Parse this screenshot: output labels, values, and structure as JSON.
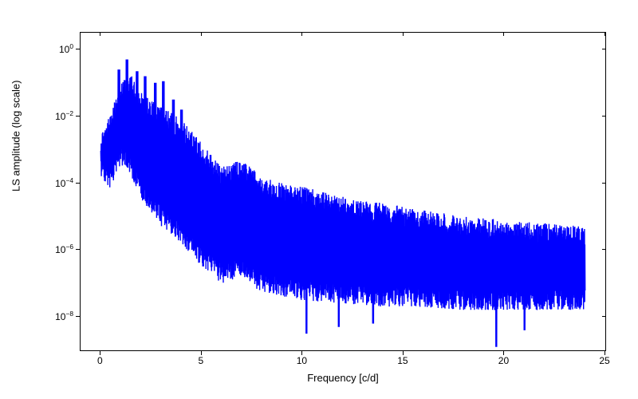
{
  "chart": {
    "type": "line",
    "xlabel": "Frequency [c/d]",
    "ylabel": "LS amplitude (log scale)",
    "line_color": "#0000ff",
    "line_width": 1.4,
    "background_color": "#ffffff",
    "border_color": "#000000",
    "label_fontsize": 13,
    "tick_fontsize": 12,
    "xlim": [
      -1,
      25
    ],
    "ylim_exp": [
      -9,
      0.5
    ],
    "yscale": "log",
    "xticks": [
      0,
      5,
      10,
      15,
      20,
      25
    ],
    "ytick_exponents": [
      -8,
      -6,
      -4,
      -2,
      0
    ],
    "peaks_x": [
      0.9,
      1.3,
      1.8,
      2.2,
      2.7,
      3.1,
      3.6,
      4.0
    ],
    "peaks_y_exp": [
      -0.6,
      -0.3,
      -0.65,
      -0.8,
      -1.0,
      -0.95,
      -1.5,
      -1.8
    ],
    "envelope_upper": [
      [
        0,
        -2.5
      ],
      [
        0.5,
        -1.9
      ],
      [
        1,
        -1.0
      ],
      [
        1.5,
        -0.7
      ],
      [
        2,
        -1.3
      ],
      [
        3,
        -1.7
      ],
      [
        4,
        -2.1
      ],
      [
        5,
        -2.8
      ],
      [
        6,
        -3.5
      ],
      [
        7,
        -3.3
      ],
      [
        8,
        -3.8
      ],
      [
        9,
        -4.0
      ],
      [
        10,
        -4.1
      ],
      [
        12,
        -4.4
      ],
      [
        14,
        -4.6
      ],
      [
        16,
        -4.8
      ],
      [
        18,
        -5.0
      ],
      [
        20,
        -5.1
      ],
      [
        22,
        -5.2
      ],
      [
        24,
        -5.3
      ]
    ],
    "envelope_lower": [
      [
        0,
        -3.8
      ],
      [
        0.5,
        -4.2
      ],
      [
        1,
        -3.5
      ],
      [
        1.5,
        -3.8
      ],
      [
        2,
        -4.5
      ],
      [
        3,
        -5.3
      ],
      [
        4,
        -5.8
      ],
      [
        5,
        -6.5
      ],
      [
        6,
        -7.0
      ],
      [
        7,
        -6.8
      ],
      [
        8,
        -7.3
      ],
      [
        9,
        -7.4
      ],
      [
        10,
        -7.5
      ],
      [
        12,
        -7.6
      ],
      [
        14,
        -7.7
      ],
      [
        16,
        -7.7
      ],
      [
        18,
        -7.8
      ],
      [
        20,
        -7.8
      ],
      [
        22,
        -7.8
      ],
      [
        24,
        -7.8
      ]
    ],
    "deep_dips": [
      [
        10.2,
        -8.5
      ],
      [
        11.8,
        -8.3
      ],
      [
        13.5,
        -8.2
      ],
      [
        19.6,
        -8.9
      ],
      [
        21.0,
        -8.4
      ]
    ]
  }
}
